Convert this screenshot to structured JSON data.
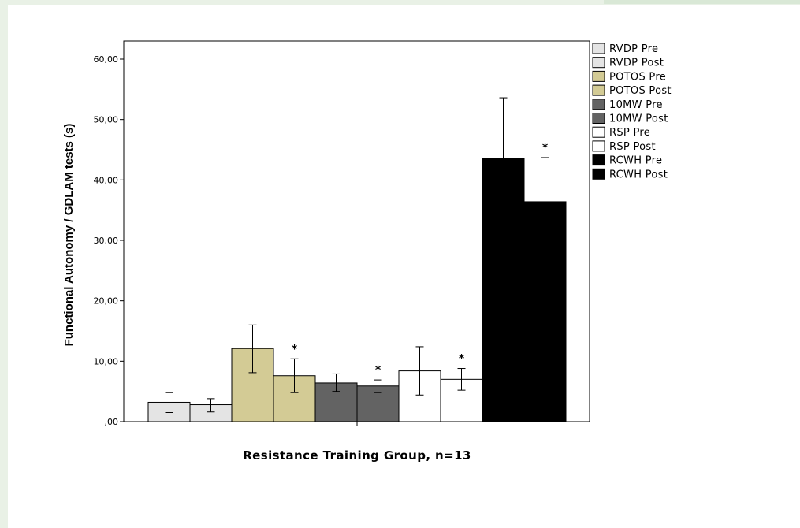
{
  "chart_data": {
    "type": "bar",
    "title": "",
    "xlabel": "Resistance Training Group, n=13",
    "ylabel": "Functional Autonomy / GDLAM tests (s)",
    "ylim": [
      0,
      60
    ],
    "y_ticks": [
      "60,00",
      "50,00",
      "40,00",
      "30,00",
      "20,00",
      "10,00",
      ",00"
    ],
    "y_tick_values": [
      60,
      50,
      40,
      30,
      20,
      10,
      0
    ],
    "grid": false,
    "legend_position": "right",
    "error_bars": true,
    "series": [
      {
        "name": "RVDP Pre",
        "value": 3.2,
        "err_low": 1.5,
        "err_high": 4.8,
        "color": "#e4e4e4",
        "significant": false
      },
      {
        "name": "RVDP Post",
        "value": 2.8,
        "err_low": 1.6,
        "err_high": 3.8,
        "color": "#e4e4e4",
        "significant": false
      },
      {
        "name": "POTOS Pre",
        "value": 12.1,
        "err_low": 8.1,
        "err_high": 16.0,
        "color": "#d3cb95",
        "significant": false
      },
      {
        "name": "POTOS Post",
        "value": 7.6,
        "err_low": 4.8,
        "err_high": 10.4,
        "color": "#d3cb95",
        "significant": true
      },
      {
        "name": "10MW Pre",
        "value": 6.4,
        "err_low": 5.0,
        "err_high": 7.9,
        "color": "#636363",
        "significant": false
      },
      {
        "name": "10MW Post",
        "value": 5.9,
        "err_low": 4.8,
        "err_high": 6.9,
        "color": "#636363",
        "significant": true
      },
      {
        "name": "RSP Pre",
        "value": 8.4,
        "err_low": 4.4,
        "err_high": 12.4,
        "color": "#ffffff",
        "significant": false
      },
      {
        "name": "RSP Post",
        "value": 7.0,
        "err_low": 5.2,
        "err_high": 8.8,
        "color": "#ffffff",
        "significant": true
      },
      {
        "name": "RCWH Pre",
        "value": 43.5,
        "err_low": 33.5,
        "err_high": 53.6,
        "color": "#000000",
        "significant": false
      },
      {
        "name": "RCWH Post",
        "value": 36.4,
        "err_low": 29.0,
        "err_high": 43.7,
        "color": "#000000",
        "significant": true
      }
    ],
    "annotations": [
      "*",
      "*",
      "*",
      "*"
    ]
  }
}
